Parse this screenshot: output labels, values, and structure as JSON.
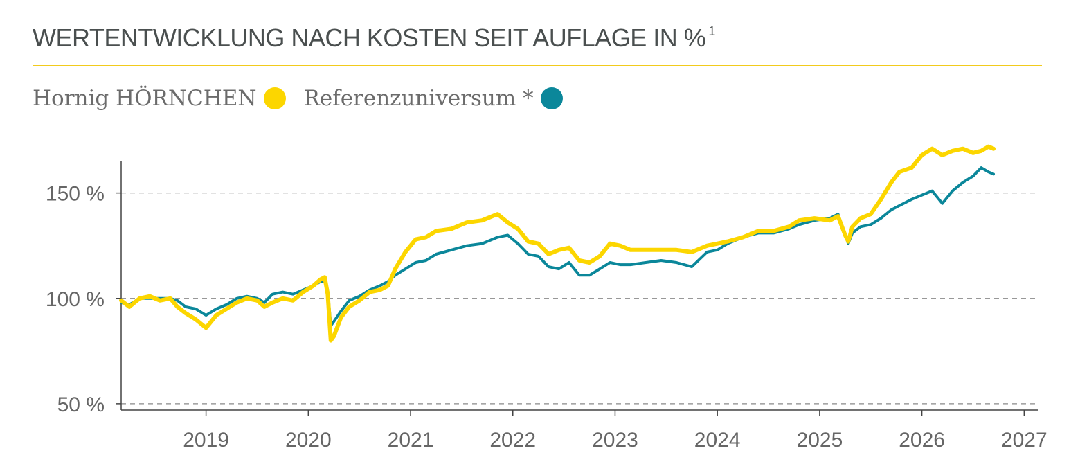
{
  "title": "WERTENTWICKLUNG NACH KOSTEN SEIT AUFLAGE IN %",
  "title_superscript": "1",
  "colors": {
    "title": "#4a4f4f",
    "rule": "#f2cb1d",
    "fund": "#fcd600",
    "reference": "#0b879a",
    "axis": "#444444",
    "grid": "#8a8a8a",
    "text": "#666666"
  },
  "legend": [
    {
      "label": "Hornig HÖRNCHEN",
      "color": "#fcd600"
    },
    {
      "label": "Referenzuniversum *",
      "color": "#0b879a"
    }
  ],
  "chart_data": {
    "type": "line",
    "x_unit": "year (decimal)",
    "xlim": [
      2018.17,
      2027.14
    ],
    "ylim": [
      47,
      165
    ],
    "x_ticks": [
      2019,
      2020,
      2021,
      2022,
      2023,
      2024,
      2025,
      2026,
      2027
    ],
    "x_tick_labels": [
      "2019",
      "2020",
      "2021",
      "2022",
      "2023",
      "2024",
      "2025",
      "2026",
      "2027"
    ],
    "y_ticks": [
      50,
      100,
      150
    ],
    "y_tick_labels": [
      "50 %",
      "100 %",
      "150 %"
    ],
    "grid": {
      "horizontal": true,
      "style": "dashed"
    },
    "legend_position": "top-left",
    "series": [
      {
        "name": "Hornig HÖRNCHEN",
        "color": "#fcd600",
        "points": [
          [
            2018.17,
            99
          ],
          [
            2018.25,
            96
          ],
          [
            2018.35,
            100
          ],
          [
            2018.45,
            101
          ],
          [
            2018.55,
            99
          ],
          [
            2018.65,
            100
          ],
          [
            2018.72,
            96
          ],
          [
            2018.8,
            93
          ],
          [
            2018.9,
            90
          ],
          [
            2019.0,
            86
          ],
          [
            2019.1,
            92
          ],
          [
            2019.2,
            95
          ],
          [
            2019.3,
            98
          ],
          [
            2019.4,
            100
          ],
          [
            2019.5,
            99
          ],
          [
            2019.57,
            96
          ],
          [
            2019.65,
            98
          ],
          [
            2019.75,
            100
          ],
          [
            2019.85,
            99
          ],
          [
            2019.95,
            103
          ],
          [
            2020.05,
            106
          ],
          [
            2020.12,
            109
          ],
          [
            2020.16,
            110
          ],
          [
            2020.19,
            102
          ],
          [
            2020.22,
            80
          ],
          [
            2020.25,
            82
          ],
          [
            2020.32,
            91
          ],
          [
            2020.4,
            96
          ],
          [
            2020.5,
            99
          ],
          [
            2020.6,
            103
          ],
          [
            2020.7,
            104
          ],
          [
            2020.78,
            106
          ],
          [
            2020.85,
            114
          ],
          [
            2020.95,
            122
          ],
          [
            2021.05,
            128
          ],
          [
            2021.15,
            129
          ],
          [
            2021.25,
            132
          ],
          [
            2021.4,
            133
          ],
          [
            2021.55,
            136
          ],
          [
            2021.7,
            137
          ],
          [
            2021.85,
            140
          ],
          [
            2021.95,
            136
          ],
          [
            2022.05,
            133
          ],
          [
            2022.15,
            127
          ],
          [
            2022.25,
            126
          ],
          [
            2022.35,
            121
          ],
          [
            2022.45,
            123
          ],
          [
            2022.55,
            124
          ],
          [
            2022.65,
            118
          ],
          [
            2022.75,
            117
          ],
          [
            2022.85,
            120
          ],
          [
            2022.95,
            126
          ],
          [
            2023.05,
            125
          ],
          [
            2023.15,
            123
          ],
          [
            2023.3,
            123
          ],
          [
            2023.45,
            123
          ],
          [
            2023.6,
            123
          ],
          [
            2023.75,
            122
          ],
          [
            2023.9,
            125
          ],
          [
            2024.0,
            126
          ],
          [
            2024.1,
            127
          ],
          [
            2024.25,
            129
          ],
          [
            2024.4,
            132
          ],
          [
            2024.55,
            132
          ],
          [
            2024.7,
            134
          ],
          [
            2024.8,
            137
          ],
          [
            2024.95,
            138
          ],
          [
            2025.1,
            137
          ],
          [
            2025.18,
            139
          ],
          [
            2025.25,
            130
          ],
          [
            2025.28,
            127
          ],
          [
            2025.32,
            134
          ],
          [
            2025.4,
            138
          ],
          [
            2025.5,
            140
          ],
          [
            2025.6,
            147
          ],
          [
            2025.7,
            155
          ],
          [
            2025.78,
            160
          ],
          [
            2025.9,
            162
          ],
          [
            2026.0,
            168
          ],
          [
            2026.1,
            171
          ],
          [
            2026.2,
            168
          ],
          [
            2026.3,
            170
          ],
          [
            2026.4,
            171
          ],
          [
            2026.5,
            169
          ],
          [
            2026.58,
            170
          ],
          [
            2026.65,
            172
          ],
          [
            2026.7,
            171
          ]
        ]
      },
      {
        "name": "Referenzuniversum *",
        "color": "#0b879a",
        "points": [
          [
            2018.17,
            98
          ],
          [
            2018.25,
            97
          ],
          [
            2018.35,
            100
          ],
          [
            2018.45,
            100
          ],
          [
            2018.55,
            100
          ],
          [
            2018.65,
            100
          ],
          [
            2018.72,
            99
          ],
          [
            2018.8,
            96
          ],
          [
            2018.9,
            95
          ],
          [
            2019.0,
            92
          ],
          [
            2019.1,
            95
          ],
          [
            2019.2,
            97
          ],
          [
            2019.3,
            100
          ],
          [
            2019.4,
            101
          ],
          [
            2019.5,
            100
          ],
          [
            2019.57,
            98
          ],
          [
            2019.65,
            102
          ],
          [
            2019.75,
            103
          ],
          [
            2019.85,
            102
          ],
          [
            2019.95,
            104
          ],
          [
            2020.05,
            106
          ],
          [
            2020.12,
            108
          ],
          [
            2020.16,
            108
          ],
          [
            2020.19,
            104
          ],
          [
            2020.22,
            87
          ],
          [
            2020.25,
            89
          ],
          [
            2020.32,
            94
          ],
          [
            2020.4,
            99
          ],
          [
            2020.5,
            101
          ],
          [
            2020.6,
            104
          ],
          [
            2020.7,
            106
          ],
          [
            2020.78,
            108
          ],
          [
            2020.85,
            111
          ],
          [
            2020.95,
            114
          ],
          [
            2021.05,
            117
          ],
          [
            2021.15,
            118
          ],
          [
            2021.25,
            121
          ],
          [
            2021.4,
            123
          ],
          [
            2021.55,
            125
          ],
          [
            2021.7,
            126
          ],
          [
            2021.85,
            129
          ],
          [
            2021.95,
            130
          ],
          [
            2022.05,
            126
          ],
          [
            2022.15,
            121
          ],
          [
            2022.25,
            120
          ],
          [
            2022.35,
            115
          ],
          [
            2022.45,
            114
          ],
          [
            2022.55,
            117
          ],
          [
            2022.65,
            111
          ],
          [
            2022.75,
            111
          ],
          [
            2022.85,
            114
          ],
          [
            2022.95,
            117
          ],
          [
            2023.05,
            116
          ],
          [
            2023.15,
            116
          ],
          [
            2023.3,
            117
          ],
          [
            2023.45,
            118
          ],
          [
            2023.6,
            117
          ],
          [
            2023.75,
            115
          ],
          [
            2023.9,
            122
          ],
          [
            2024.0,
            123
          ],
          [
            2024.1,
            126
          ],
          [
            2024.25,
            129
          ],
          [
            2024.4,
            131
          ],
          [
            2024.55,
            131
          ],
          [
            2024.7,
            133
          ],
          [
            2024.8,
            135
          ],
          [
            2024.95,
            137
          ],
          [
            2025.1,
            138
          ],
          [
            2025.18,
            140
          ],
          [
            2025.25,
            130
          ],
          [
            2025.28,
            126
          ],
          [
            2025.32,
            131
          ],
          [
            2025.4,
            134
          ],
          [
            2025.5,
            135
          ],
          [
            2025.6,
            138
          ],
          [
            2025.7,
            142
          ],
          [
            2025.78,
            144
          ],
          [
            2025.9,
            147
          ],
          [
            2026.0,
            149
          ],
          [
            2026.1,
            151
          ],
          [
            2026.2,
            145
          ],
          [
            2026.3,
            151
          ],
          [
            2026.4,
            155
          ],
          [
            2026.5,
            158
          ],
          [
            2026.58,
            162
          ],
          [
            2026.65,
            160
          ],
          [
            2026.7,
            159
          ]
        ]
      }
    ]
  }
}
